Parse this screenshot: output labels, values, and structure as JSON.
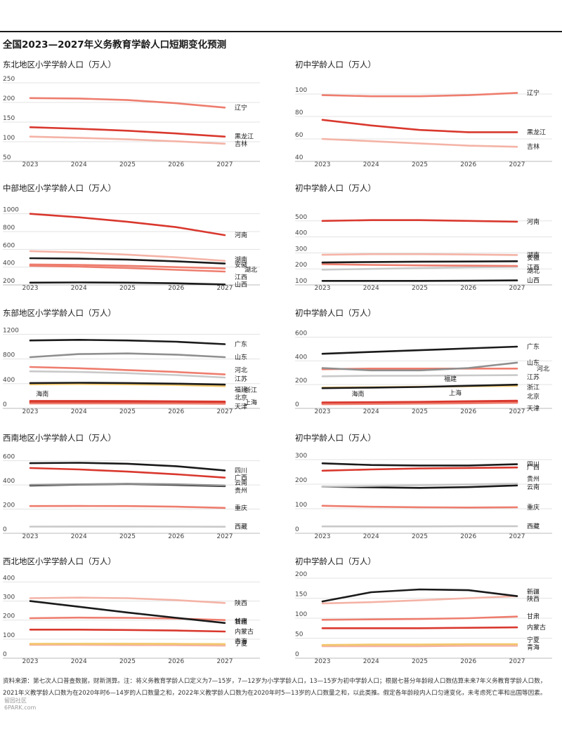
{
  "page": {
    "title": "全国2023—2027年义务教育学龄人口短期变化预测",
    "footnote_lines": [
      "资料来源：第七次人口普查数据，财新测算。注：将义务教育学龄人口定义为7—15岁，7—12岁为小学学龄人口，13—15岁为初中学龄人口；根据七普分年龄段人口数估算未来7年义务教育学龄人口数，",
      "2021年义教学龄人口数为在2020年时6—14岁的人口数量之和，2022年义教学龄人口数为在2020年时5—13岁的人口数量之和，以此类推。假定各年龄段内人口匀速变化，未考虑死亡率和出国等因素。"
    ],
    "watermark_lines": [
      "留园社区",
      "6PARK.com"
    ]
  },
  "colors": {
    "black": "#1a1a1a",
    "red": "#d9382e",
    "salmon": "#ee7d6e",
    "pink": "#f4b3a6",
    "gray": "#8f8f8f",
    "lightgray": "#c9c9c9",
    "yellow": "#f2c76a",
    "magenta": "#c44a6a"
  },
  "chart_data": [
    {
      "type": "line",
      "title": "东北地区小学学龄人口（万人）",
      "x": [
        "2023",
        "2024",
        "2025",
        "2026",
        "2027"
      ],
      "ylim": [
        50,
        250
      ],
      "yticks": [
        50,
        100,
        150,
        200,
        250
      ],
      "series": [
        {
          "name": "辽宁",
          "color": "salmon",
          "values": [
            211,
            210,
            206,
            198,
            187
          ]
        },
        {
          "name": "黑龙江",
          "color": "red",
          "values": [
            137,
            133,
            128,
            121,
            113
          ]
        },
        {
          "name": "吉林",
          "color": "pink",
          "values": [
            113,
            110,
            106,
            101,
            95
          ]
        }
      ]
    },
    {
      "type": "line",
      "title": "初中学龄人口（万人）",
      "x": [
        "2023",
        "2024",
        "2025",
        "2026",
        "2027"
      ],
      "ylim": [
        40,
        110
      ],
      "yticks": [
        40,
        60,
        80,
        100
      ],
      "series": [
        {
          "name": "辽宁",
          "color": "salmon",
          "values": [
            99,
            98,
            98,
            99,
            101
          ]
        },
        {
          "name": "黑龙江",
          "color": "red",
          "values": [
            77,
            72,
            68,
            66,
            66
          ]
        },
        {
          "name": "吉林",
          "color": "pink",
          "values": [
            60,
            58,
            56,
            54,
            53
          ]
        }
      ]
    },
    {
      "type": "line",
      "title": "中部地区小学学龄人口（万人）",
      "x": [
        "2023",
        "2024",
        "2025",
        "2026",
        "2027"
      ],
      "ylim": [
        200,
        1100
      ],
      "yticks": [
        200,
        400,
        600,
        800,
        1000
      ],
      "series": [
        {
          "name": "河南",
          "color": "red",
          "values": [
            1000,
            960,
            910,
            850,
            760
          ]
        },
        {
          "name": "湖南",
          "color": "pink",
          "values": [
            580,
            565,
            540,
            510,
            470
          ]
        },
        {
          "name": "安徽",
          "color": "black",
          "values": [
            500,
            495,
            485,
            465,
            440
          ]
        },
        {
          "name": "湖北",
          "color": "salmon",
          "values": [
            430,
            425,
            415,
            400,
            385
          ]
        },
        {
          "name": "江西",
          "color": "salmon",
          "values": [
            415,
            405,
            390,
            370,
            350
          ]
        },
        {
          "name": "山西",
          "color": "black",
          "values": [
            225,
            228,
            225,
            218,
            205
          ]
        }
      ]
    },
    {
      "type": "line",
      "title": "初中学龄人口（万人）",
      "x": [
        "2023",
        "2024",
        "2025",
        "2026",
        "2027"
      ],
      "ylim": [
        100,
        600
      ],
      "yticks": [
        100,
        200,
        300,
        400,
        500
      ],
      "series": [
        {
          "name": "河南",
          "color": "red",
          "values": [
            500,
            505,
            505,
            500,
            495
          ]
        },
        {
          "name": "湖南",
          "color": "pink",
          "values": [
            288,
            292,
            292,
            290,
            287
          ]
        },
        {
          "name": "安徽",
          "color": "black",
          "values": [
            240,
            243,
            245,
            246,
            248
          ]
        },
        {
          "name": "江西",
          "color": "salmon",
          "values": [
            230,
            225,
            222,
            220,
            218
          ]
        },
        {
          "name": "湖北",
          "color": "lightgray",
          "values": [
            195,
            200,
            205,
            210,
            213
          ]
        },
        {
          "name": "山西",
          "color": "black",
          "values": [
            125,
            125,
            125,
            126,
            128
          ]
        }
      ]
    },
    {
      "type": "line",
      "title": "东部地区小学学龄人口（万人）",
      "x": [
        "2023",
        "2024",
        "2025",
        "2026",
        "2027"
      ],
      "ylim": [
        0,
        1250
      ],
      "yticks": [
        0,
        400,
        800,
        1200
      ],
      "series": [
        {
          "name": "广东",
          "color": "black",
          "values": [
            1100,
            1110,
            1100,
            1080,
            1040
          ]
        },
        {
          "name": "山东",
          "color": "gray",
          "values": [
            830,
            880,
            890,
            870,
            830
          ]
        },
        {
          "name": "河北",
          "color": "salmon",
          "values": [
            670,
            650,
            620,
            590,
            550
          ]
        },
        {
          "name": "江苏",
          "color": "lightgray",
          "values": [
            600,
            590,
            570,
            540,
            500
          ]
        },
        {
          "name": "浙江",
          "color": "black",
          "values": [
            410,
            415,
            410,
            400,
            385
          ]
        },
        {
          "name": "福建",
          "color": "yellow",
          "values": [
            390,
            395,
            390,
            380,
            360
          ]
        },
        {
          "name": "北京",
          "color": "red",
          "values": [
            120,
            120,
            118,
            115,
            110
          ]
        },
        {
          "name": "天津",
          "color": "salmon",
          "values": [
            80,
            80,
            80,
            78,
            75
          ]
        },
        {
          "name": "上海",
          "color": "red",
          "values": [
            100,
            100,
            98,
            96,
            94
          ]
        },
        {
          "name": "海南",
          "color": "magenta",
          "values": [
            105,
            108,
            108,
            106,
            103
          ]
        }
      ]
    },
    {
      "type": "line",
      "title": "初中学龄人口（万人）",
      "x": [
        "2023",
        "2024",
        "2025",
        "2026",
        "2027"
      ],
      "ylim": [
        0,
        650
      ],
      "yticks": [
        0,
        200,
        400,
        600
      ],
      "series": [
        {
          "name": "广东",
          "color": "black",
          "values": [
            460,
            475,
            490,
            505,
            520
          ]
        },
        {
          "name": "山东",
          "color": "gray",
          "values": [
            340,
            320,
            320,
            340,
            385
          ]
        },
        {
          "name": "河北",
          "color": "salmon",
          "values": [
            330,
            335,
            335,
            335,
            335
          ]
        },
        {
          "name": "江苏",
          "color": "lightgray",
          "values": [
            270,
            275,
            275,
            278,
            280
          ]
        },
        {
          "name": "浙江",
          "color": "black",
          "values": [
            170,
            175,
            180,
            190,
            200
          ]
        },
        {
          "name": "福建",
          "color": "yellow",
          "values": [
            175,
            178,
            182,
            186,
            190
          ]
        },
        {
          "name": "北京",
          "color": "red",
          "values": [
            50,
            52,
            55,
            60,
            65
          ]
        },
        {
          "name": "天津",
          "color": "salmon",
          "values": [
            35,
            37,
            40,
            43,
            47
          ]
        },
        {
          "name": "上海",
          "color": "red",
          "values": [
            45,
            47,
            50,
            53,
            57
          ]
        },
        {
          "name": "海南",
          "color": "magenta",
          "values": [
            42,
            44,
            45,
            47,
            48
          ]
        }
      ]
    },
    {
      "type": "line",
      "title": "西南地区小学学龄人口（万人）",
      "x": [
        "2023",
        "2024",
        "2025",
        "2026",
        "2027"
      ],
      "ylim": [
        0,
        650
      ],
      "yticks": [
        0,
        200,
        400,
        600
      ],
      "series": [
        {
          "name": "四川",
          "color": "black",
          "values": [
            580,
            583,
            575,
            555,
            520
          ]
        },
        {
          "name": "广西",
          "color": "red",
          "values": [
            540,
            528,
            510,
            488,
            460
          ]
        },
        {
          "name": "云南",
          "color": "gray",
          "values": [
            400,
            405,
            410,
            405,
            395
          ]
        },
        {
          "name": "贵州",
          "color": "black",
          "values": [
            395,
            403,
            408,
            400,
            390
          ]
        },
        {
          "name": "重庆",
          "color": "salmon",
          "values": [
            225,
            226,
            225,
            220,
            210
          ]
        },
        {
          "name": "西藏",
          "color": "lightgray",
          "values": [
            55,
            56,
            56,
            55,
            54
          ]
        }
      ]
    },
    {
      "type": "line",
      "title": "初中学龄人口（万人）",
      "x": [
        "2023",
        "2024",
        "2025",
        "2026",
        "2027"
      ],
      "ylim": [
        0,
        320
      ],
      "yticks": [
        0,
        100,
        200,
        300
      ],
      "series": [
        {
          "name": "四川",
          "color": "black",
          "values": [
            285,
            278,
            276,
            276,
            281
          ]
        },
        {
          "name": "广西",
          "color": "red",
          "values": [
            255,
            260,
            264,
            266,
            268
          ]
        },
        {
          "name": "贵州",
          "color": "lightgray",
          "values": [
            190,
            193,
            196,
            199,
            202
          ]
        },
        {
          "name": "云南",
          "color": "black",
          "values": [
            190,
            187,
            185,
            188,
            195
          ]
        },
        {
          "name": "重庆",
          "color": "salmon",
          "values": [
            112,
            108,
            106,
            105,
            106
          ]
        },
        {
          "name": "西藏",
          "color": "lightgray",
          "values": [
            28,
            28,
            28,
            29,
            29
          ]
        }
      ]
    },
    {
      "type": "line",
      "title": "西北地区小学学龄人口（万人）",
      "x": [
        "2023",
        "2024",
        "2025",
        "2026",
        "2027"
      ],
      "ylim": [
        0,
        420
      ],
      "yticks": [
        0,
        100,
        200,
        300,
        400
      ],
      "series": [
        {
          "name": "陕西",
          "color": "pink",
          "values": [
            315,
            318,
            315,
            305,
            290
          ]
        },
        {
          "name": "新疆",
          "color": "black",
          "values": [
            300,
            270,
            240,
            212,
            185
          ]
        },
        {
          "name": "甘肃",
          "color": "salmon",
          "values": [
            210,
            213,
            212,
            208,
            200
          ]
        },
        {
          "name": "内蒙古",
          "color": "red",
          "values": [
            150,
            150,
            148,
            145,
            140
          ]
        },
        {
          "name": "宁夏",
          "color": "yellow",
          "values": [
            75,
            76,
            76,
            75,
            74
          ]
        },
        {
          "name": "青海",
          "color": "pink",
          "values": [
            70,
            70,
            69,
            68,
            66
          ]
        }
      ]
    },
    {
      "type": "line",
      "title": "初中学龄人口（万人）",
      "x": [
        "2023",
        "2024",
        "2025",
        "2026",
        "2027"
      ],
      "ylim": [
        0,
        200
      ],
      "yticks": [
        0,
        50,
        100,
        150,
        200
      ],
      "series": [
        {
          "name": "新疆",
          "color": "black",
          "values": [
            142,
            165,
            172,
            170,
            155
          ]
        },
        {
          "name": "陕西",
          "color": "pink",
          "values": [
            137,
            140,
            145,
            150,
            155
          ]
        },
        {
          "name": "甘肃",
          "color": "salmon",
          "values": [
            96,
            97,
            98,
            100,
            104
          ]
        },
        {
          "name": "内蒙古",
          "color": "red",
          "values": [
            75,
            75,
            75,
            76,
            77
          ]
        },
        {
          "name": "宁夏",
          "color": "yellow",
          "values": [
            33,
            34,
            34,
            35,
            35
          ]
        },
        {
          "name": "青海",
          "color": "pink",
          "values": [
            30,
            30,
            30,
            31,
            31
          ]
        }
      ]
    }
  ]
}
